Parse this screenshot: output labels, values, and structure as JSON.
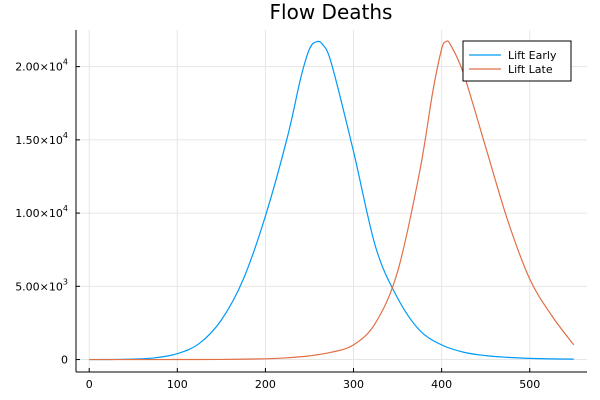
{
  "chart_data": {
    "type": "line",
    "title": "Flow Deaths",
    "xlabel": "",
    "ylabel": "",
    "xlim": [
      -15,
      565
    ],
    "ylim": [
      -850,
      22500
    ],
    "grid": true,
    "legend_position": "top-right",
    "x_ticks": [
      {
        "value": 0,
        "label": "0"
      },
      {
        "value": 100,
        "label": "100"
      },
      {
        "value": 200,
        "label": "200"
      },
      {
        "value": 300,
        "label": "300"
      },
      {
        "value": 400,
        "label": "400"
      },
      {
        "value": 500,
        "label": "500"
      }
    ],
    "y_ticks": [
      {
        "value": 0,
        "label": "0",
        "exp": ""
      },
      {
        "value": 5000,
        "label": "5.00×10",
        "exp": "3"
      },
      {
        "value": 10000,
        "label": "1.00×10",
        "exp": "4"
      },
      {
        "value": 15000,
        "label": "1.50×10",
        "exp": "4"
      },
      {
        "value": 20000,
        "label": "2.00×10",
        "exp": "4"
      }
    ],
    "series": [
      {
        "name": "Lift Early",
        "color": "#009af9",
        "points": [
          [
            0,
            0
          ],
          [
            25,
            5
          ],
          [
            50,
            30
          ],
          [
            75,
            120
          ],
          [
            100,
            400
          ],
          [
            125,
            1100
          ],
          [
            150,
            2700
          ],
          [
            175,
            5500
          ],
          [
            200,
            9800
          ],
          [
            225,
            15200
          ],
          [
            240,
            19200
          ],
          [
            250,
            21200
          ],
          [
            258,
            21700
          ],
          [
            265,
            21500
          ],
          [
            275,
            20200
          ],
          [
            300,
            14200
          ],
          [
            325,
            7700
          ],
          [
            350,
            4200
          ],
          [
            375,
            2000
          ],
          [
            400,
            1000
          ],
          [
            425,
            500
          ],
          [
            450,
            270
          ],
          [
            475,
            150
          ],
          [
            500,
            80
          ],
          [
            525,
            45
          ],
          [
            550,
            30
          ]
        ]
      },
      {
        "name": "Lift Late",
        "color": "#e26f46",
        "points": [
          [
            0,
            0
          ],
          [
            50,
            0
          ],
          [
            100,
            2
          ],
          [
            150,
            8
          ],
          [
            200,
            50
          ],
          [
            225,
            120
          ],
          [
            250,
            250
          ],
          [
            275,
            500
          ],
          [
            300,
            1000
          ],
          [
            325,
            2500
          ],
          [
            350,
            6000
          ],
          [
            375,
            12800
          ],
          [
            390,
            18300
          ],
          [
            400,
            21200
          ],
          [
            405,
            21700
          ],
          [
            410,
            21500
          ],
          [
            425,
            19500
          ],
          [
            450,
            14500
          ],
          [
            475,
            9500
          ],
          [
            500,
            5500
          ],
          [
            525,
            3000
          ],
          [
            550,
            1000
          ]
        ]
      }
    ]
  }
}
